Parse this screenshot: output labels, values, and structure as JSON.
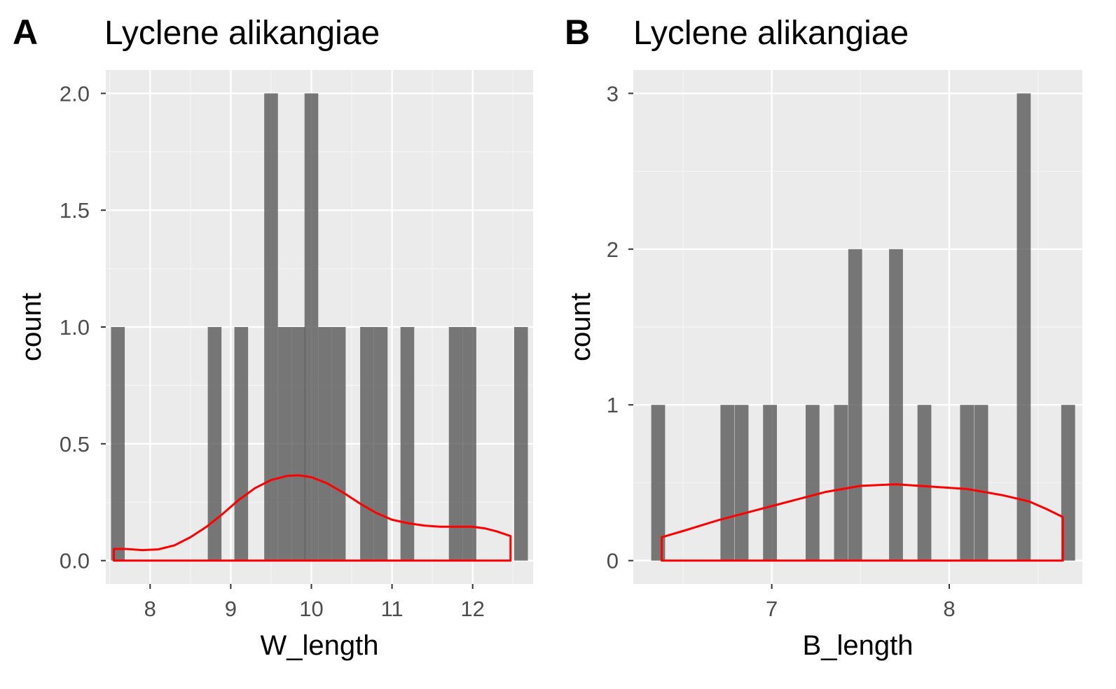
{
  "colors": {
    "panel_background": "#ebebeb",
    "grid_major": "#ffffff",
    "grid_minor": "#f5f5f5",
    "bar_fill": "#595959",
    "bar_opacity": "0.8",
    "density_line": "#ff0000",
    "tick_mark": "#333333"
  },
  "chart_data": [
    {
      "tag": "A",
      "type": "bar",
      "title": "Lyclene alikangiae",
      "xlabel": "W_length",
      "ylabel": "count",
      "xlim": [
        7.45,
        12.75
      ],
      "ylim": [
        -0.1,
        2.1
      ],
      "xticks": [
        8,
        9,
        10,
        11,
        12
      ],
      "xtick_labels": [
        "8",
        "9",
        "10",
        "11",
        "12"
      ],
      "xminor": [
        7.5,
        8.5,
        9.5,
        10.5,
        11.5,
        12.5
      ],
      "yticks": [
        0,
        0.5,
        1,
        1.5,
        2
      ],
      "ytick_labels": [
        "0.0",
        "0.5",
        "1.0",
        "1.5",
        "2.0"
      ],
      "yminor": [
        0.25,
        0.75,
        1.25,
        1.75
      ],
      "bin_width": 0.17,
      "bars": [
        {
          "x": 7.6,
          "count": 1
        },
        {
          "x": 8.8,
          "count": 1
        },
        {
          "x": 9.13,
          "count": 1
        },
        {
          "x": 9.5,
          "count": 2
        },
        {
          "x": 9.67,
          "count": 1
        },
        {
          "x": 9.84,
          "count": 1
        },
        {
          "x": 10.0,
          "count": 2
        },
        {
          "x": 10.17,
          "count": 1
        },
        {
          "x": 10.34,
          "count": 1
        },
        {
          "x": 10.69,
          "count": 1
        },
        {
          "x": 10.86,
          "count": 1
        },
        {
          "x": 11.19,
          "count": 1
        },
        {
          "x": 11.79,
          "count": 1
        },
        {
          "x": 11.96,
          "count": 1
        },
        {
          "x": 12.6,
          "count": 1
        }
      ],
      "density": {
        "x": [
          7.55,
          7.7,
          7.9,
          8.1,
          8.3,
          8.5,
          8.7,
          8.9,
          9.1,
          9.3,
          9.5,
          9.7,
          9.85,
          10.0,
          10.2,
          10.4,
          10.6,
          10.8,
          11.0,
          11.2,
          11.4,
          11.6,
          11.8,
          12.0,
          12.15,
          12.3,
          12.47
        ],
        "y": [
          0.05,
          0.05,
          0.045,
          0.048,
          0.065,
          0.1,
          0.145,
          0.2,
          0.26,
          0.31,
          0.345,
          0.363,
          0.365,
          0.357,
          0.33,
          0.29,
          0.245,
          0.205,
          0.175,
          0.16,
          0.15,
          0.145,
          0.145,
          0.145,
          0.138,
          0.125,
          0.105
        ]
      }
    },
    {
      "tag": "B",
      "type": "bar",
      "title": "Lyclene alikangiae",
      "xlabel": "B_length",
      "ylabel": "count",
      "xlim": [
        6.22,
        8.75
      ],
      "ylim": [
        -0.15,
        3.15
      ],
      "xticks": [
        7,
        8
      ],
      "xtick_labels": [
        "7",
        "8"
      ],
      "xminor": [
        6.5,
        7.5,
        8.5
      ],
      "yticks": [
        0,
        1,
        2,
        3
      ],
      "ytick_labels": [
        "0",
        "1",
        "2",
        "3"
      ],
      "yminor": [
        0.5,
        1.5,
        2.5
      ],
      "bin_width": 0.078,
      "bars": [
        {
          "x": 6.36,
          "count": 1
        },
        {
          "x": 6.75,
          "count": 1
        },
        {
          "x": 6.83,
          "count": 1
        },
        {
          "x": 6.99,
          "count": 1
        },
        {
          "x": 7.23,
          "count": 1
        },
        {
          "x": 7.39,
          "count": 1
        },
        {
          "x": 7.47,
          "count": 2
        },
        {
          "x": 7.7,
          "count": 2
        },
        {
          "x": 7.86,
          "count": 1
        },
        {
          "x": 8.1,
          "count": 1
        },
        {
          "x": 8.18,
          "count": 1
        },
        {
          "x": 8.42,
          "count": 3
        },
        {
          "x": 8.67,
          "count": 1
        }
      ],
      "density": {
        "x": [
          6.38,
          6.5,
          6.7,
          6.9,
          7.1,
          7.3,
          7.5,
          7.7,
          7.9,
          8.1,
          8.3,
          8.45,
          8.55,
          8.64
        ],
        "y": [
          0.15,
          0.19,
          0.26,
          0.32,
          0.38,
          0.44,
          0.48,
          0.49,
          0.475,
          0.46,
          0.42,
          0.38,
          0.33,
          0.28
        ]
      }
    }
  ]
}
